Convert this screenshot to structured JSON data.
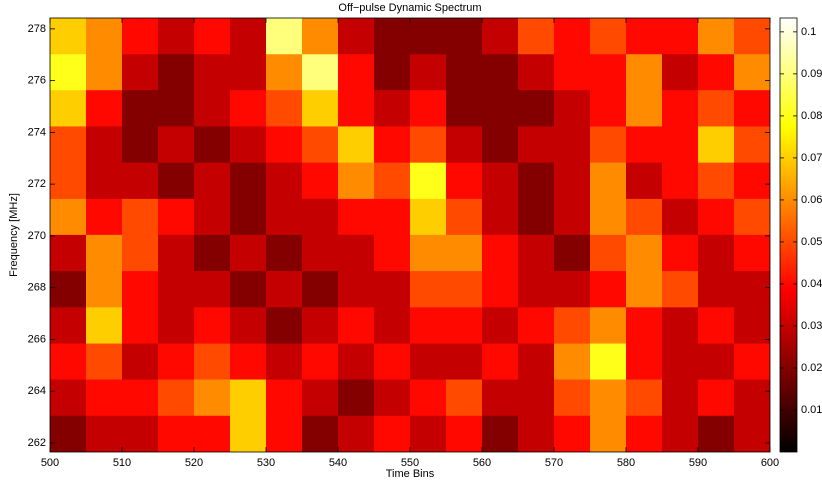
{
  "chart_data": {
    "type": "heatmap",
    "title": "Off−pulse Dynamic Spectrum",
    "x_label": "Time Bins",
    "y_label": "Frequency [MHz]",
    "colormap": "hot",
    "x": [
      502.5,
      507.5,
      512.5,
      517.5,
      522.5,
      527.5,
      532.5,
      537.5,
      542.5,
      547.5,
      552.5,
      557.5,
      562.5,
      567.5,
      572.5,
      577.5,
      582.5,
      587.5,
      592.5,
      597.5
    ],
    "y": [
      277.72,
      276.32,
      274.93,
      273.53,
      272.13,
      270.73,
      269.34,
      267.94,
      266.54,
      265.14,
      263.75,
      262.35
    ],
    "z": [
      [
        0.07,
        0.06,
        0.04,
        0.03,
        0.04,
        0.03,
        0.09,
        0.06,
        0.03,
        0.02,
        0.02,
        0.02,
        0.03,
        0.05,
        0.04,
        0.05,
        0.04,
        0.04,
        0.06,
        0.05
      ],
      [
        0.08,
        0.06,
        0.03,
        0.02,
        0.03,
        0.03,
        0.06,
        0.09,
        0.04,
        0.02,
        0.03,
        0.02,
        0.02,
        0.03,
        0.04,
        0.04,
        0.06,
        0.03,
        0.04,
        0.06
      ],
      [
        0.07,
        0.04,
        0.02,
        0.02,
        0.03,
        0.04,
        0.05,
        0.07,
        0.04,
        0.03,
        0.04,
        0.02,
        0.02,
        0.02,
        0.03,
        0.04,
        0.06,
        0.04,
        0.05,
        0.04
      ],
      [
        0.05,
        0.03,
        0.02,
        0.03,
        0.02,
        0.03,
        0.04,
        0.05,
        0.07,
        0.04,
        0.05,
        0.03,
        0.02,
        0.03,
        0.03,
        0.05,
        0.04,
        0.04,
        0.07,
        0.05
      ],
      [
        0.05,
        0.03,
        0.03,
        0.02,
        0.03,
        0.02,
        0.03,
        0.04,
        0.06,
        0.05,
        0.08,
        0.04,
        0.03,
        0.02,
        0.03,
        0.06,
        0.03,
        0.04,
        0.05,
        0.04
      ],
      [
        0.06,
        0.04,
        0.05,
        0.04,
        0.03,
        0.02,
        0.03,
        0.03,
        0.04,
        0.04,
        0.07,
        0.05,
        0.03,
        0.02,
        0.03,
        0.06,
        0.05,
        0.03,
        0.04,
        0.05
      ],
      [
        0.03,
        0.06,
        0.05,
        0.03,
        0.02,
        0.03,
        0.02,
        0.03,
        0.03,
        0.04,
        0.06,
        0.06,
        0.04,
        0.03,
        0.02,
        0.05,
        0.06,
        0.04,
        0.03,
        0.04
      ],
      [
        0.02,
        0.06,
        0.04,
        0.03,
        0.03,
        0.02,
        0.03,
        0.02,
        0.03,
        0.03,
        0.05,
        0.05,
        0.04,
        0.03,
        0.03,
        0.04,
        0.06,
        0.05,
        0.03,
        0.03
      ],
      [
        0.03,
        0.07,
        0.04,
        0.03,
        0.04,
        0.03,
        0.02,
        0.03,
        0.04,
        0.03,
        0.04,
        0.04,
        0.03,
        0.04,
        0.05,
        0.06,
        0.04,
        0.03,
        0.04,
        0.03
      ],
      [
        0.04,
        0.05,
        0.03,
        0.04,
        0.05,
        0.04,
        0.03,
        0.04,
        0.03,
        0.04,
        0.03,
        0.03,
        0.04,
        0.03,
        0.06,
        0.08,
        0.04,
        0.03,
        0.03,
        0.04
      ],
      [
        0.03,
        0.04,
        0.04,
        0.05,
        0.06,
        0.07,
        0.04,
        0.03,
        0.02,
        0.03,
        0.04,
        0.05,
        0.03,
        0.03,
        0.05,
        0.06,
        0.05,
        0.03,
        0.04,
        0.03
      ],
      [
        0.02,
        0.03,
        0.03,
        0.04,
        0.04,
        0.07,
        0.04,
        0.02,
        0.03,
        0.04,
        0.03,
        0.04,
        0.02,
        0.03,
        0.04,
        0.06,
        0.04,
        0.03,
        0.02,
        0.03
      ]
    ],
    "xlim": [
      500,
      600
    ],
    "xticks": [
      500,
      510,
      520,
      530,
      540,
      550,
      560,
      570,
      580,
      590,
      600
    ],
    "ylim": [
      261.65,
      278.42
    ],
    "yticks": [
      262,
      264,
      266,
      268,
      270,
      272,
      274,
      276,
      278
    ],
    "clim": [
      0,
      0.1033
    ],
    "cticks": [
      0.01,
      0.02,
      0.03,
      0.04,
      0.05,
      0.06,
      0.07,
      0.08,
      0.09,
      0.1
    ]
  }
}
